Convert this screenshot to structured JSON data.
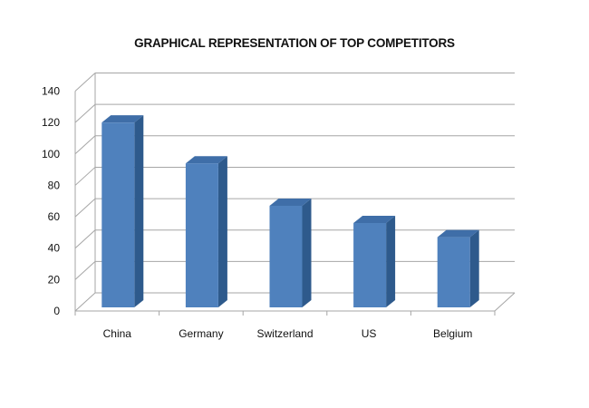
{
  "chart_data": {
    "type": "bar",
    "title": "GRAPHICAL REPRESENTATION OF TOP COMPETITORS",
    "categories": [
      "China",
      "Germany",
      "Switzerland",
      "US",
      "Belgium"
    ],
    "values": [
      120,
      94,
      67,
      56,
      47
    ],
    "ylim": [
      0,
      140
    ],
    "yticks": [
      0,
      20,
      40,
      60,
      80,
      100,
      120,
      140
    ],
    "xlabel": "",
    "ylabel": "",
    "grid": true,
    "legend": "none",
    "style": "3d-column",
    "colors": {
      "bar_front": "#4F81BD",
      "bar_side": "#2E5A8C",
      "bar_top": "#3F6EA8",
      "gridline": "#A6A6A6"
    }
  }
}
